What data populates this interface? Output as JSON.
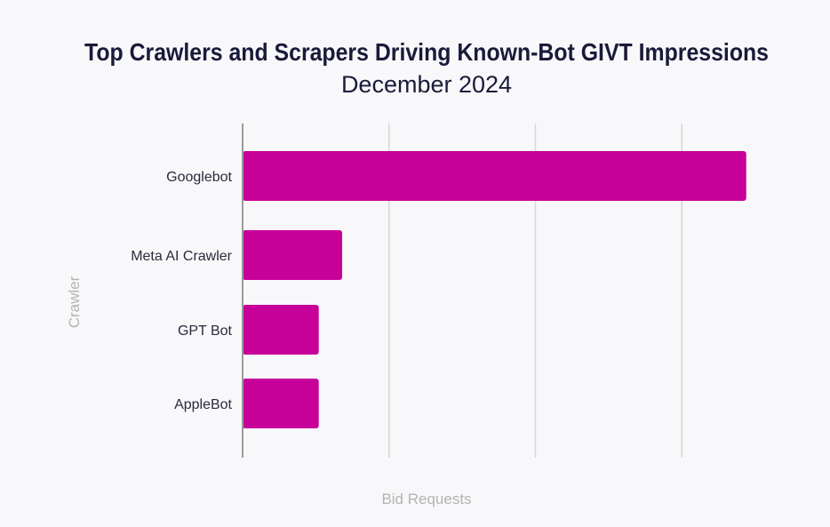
{
  "chart_data": {
    "type": "bar",
    "orientation": "horizontal",
    "title": "Top Crawlers and Scrapers Driving Known-Bot GIVT Impressions",
    "subtitle": "December 2024",
    "xlabel": "Bid Requests",
    "ylabel": "Crawler",
    "categories": [
      "Googlebot",
      "Meta AI Crawler",
      "GPT Bot",
      "AppleBot"
    ],
    "values": [
      3.44,
      0.68,
      0.52,
      0.52
    ],
    "xlim": [
      0,
      4
    ],
    "x_tick_labels_shown": false,
    "grid": "vertical",
    "legend": "none"
  },
  "colors": {
    "bar": "#c8009a",
    "title": "#1a1a3a",
    "category_label": "#2a2a3a",
    "axis_label": "#b3b3b3",
    "grid": "#d6d6d6",
    "axis_line": "#9a9a9a",
    "background": "#f8f8fb"
  }
}
